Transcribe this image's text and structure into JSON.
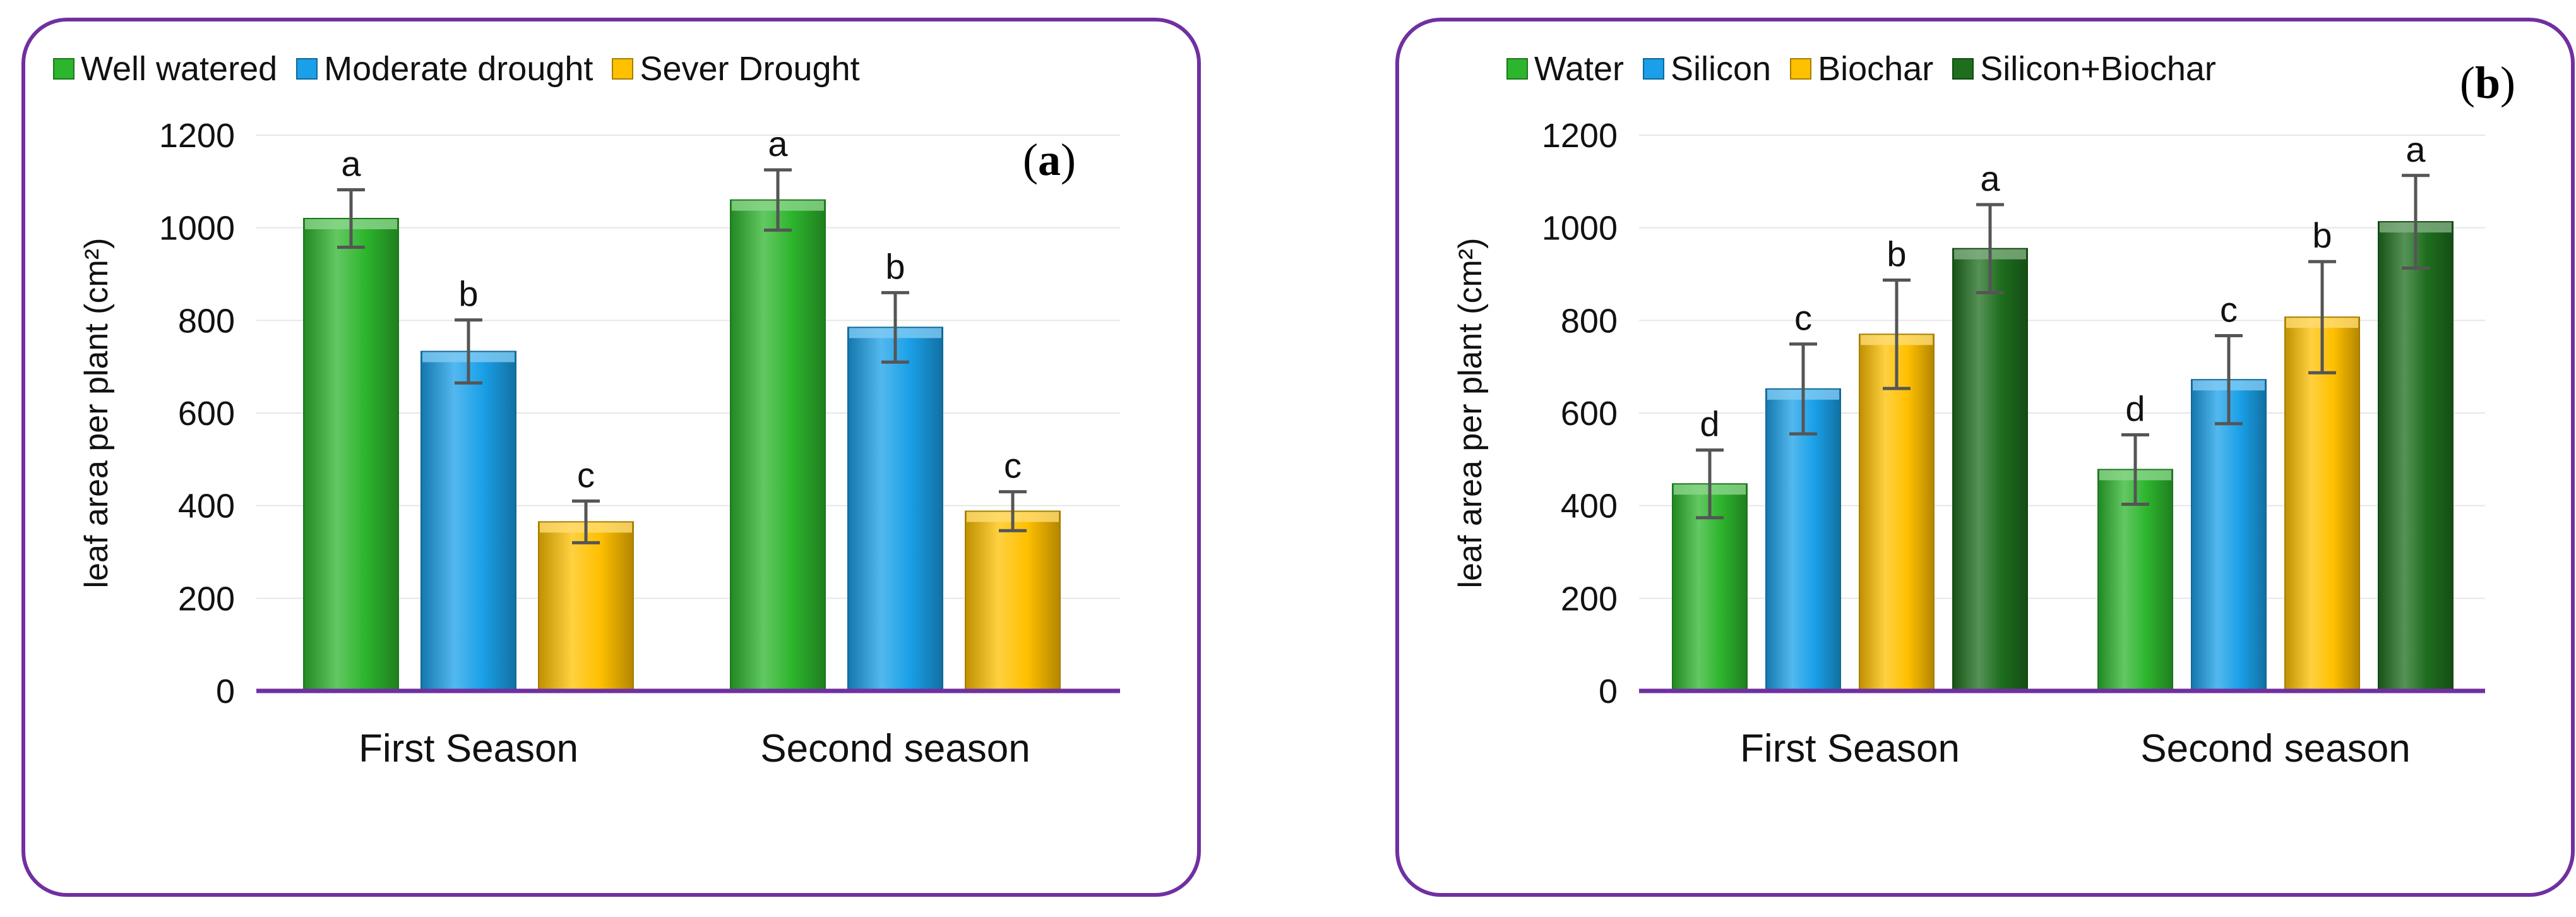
{
  "panels": [
    {
      "label": "a",
      "legend_position": "top",
      "chart_data": {
        "type": "bar",
        "categories": [
          "First Season",
          "Second season"
        ],
        "ylabel": "leaf area per plant (cm²)",
        "ylim": [
          0,
          1200
        ],
        "yticks": [
          0,
          200,
          400,
          600,
          800,
          1000,
          1200
        ],
        "grid": true,
        "series": [
          {
            "name": "Well watered",
            "color": "#2db52d",
            "values": [
              1020,
              1060
            ],
            "errors": [
              62,
              65
            ],
            "letters": [
              "a",
              "a"
            ]
          },
          {
            "name": "Moderate drought",
            "color": "#1aa0e8",
            "values": [
              733,
              785
            ],
            "errors": [
              68,
              75
            ],
            "letters": [
              "b",
              "b"
            ]
          },
          {
            "name": "Sever Drought",
            "color": "#ffc000",
            "values": [
              365,
              388
            ],
            "errors": [
              45,
              42
            ],
            "letters": [
              "c",
              "c"
            ]
          }
        ]
      }
    },
    {
      "label": "b",
      "legend_position": "top",
      "chart_data": {
        "type": "bar",
        "categories": [
          "First Season",
          "Second season"
        ],
        "ylabel": "leaf area per plant (cm²)",
        "ylim": [
          0,
          1200
        ],
        "yticks": [
          0,
          200,
          400,
          600,
          800,
          1000,
          1200
        ],
        "grid": true,
        "series": [
          {
            "name": "Water",
            "color": "#2db52d",
            "values": [
              447,
              478
            ],
            "errors": [
              73,
              75
            ],
            "letters": [
              "d",
              "d"
            ]
          },
          {
            "name": "Silicon",
            "color": "#1aa0e8",
            "values": [
              652,
              672
            ],
            "errors": [
              97,
              95
            ],
            "letters": [
              "c",
              "c"
            ]
          },
          {
            "name": "Biochar",
            "color": "#ffc000",
            "values": [
              770,
              807
            ],
            "errors": [
              117,
              120
            ],
            "letters": [
              "b",
              "b"
            ]
          },
          {
            "name": "Silicon+Biochar",
            "color": "#1e6e1e",
            "values": [
              955,
              1013
            ],
            "errors": [
              95,
              100
            ],
            "letters": [
              "a",
              "a"
            ]
          }
        ]
      }
    }
  ]
}
